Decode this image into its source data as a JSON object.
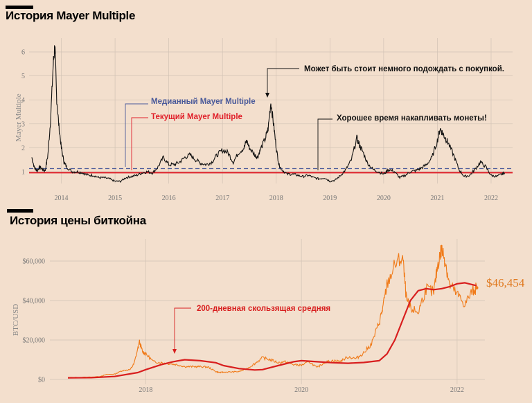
{
  "chart1": {
    "title": "История Mayer Multiple",
    "ylabel": "Mayer Multiple",
    "yticks": [
      "1",
      "2",
      "3",
      "4",
      "5",
      "6"
    ],
    "xticks": [
      "2014",
      "2015",
      "2016",
      "2017",
      "2018",
      "2019",
      "2020",
      "2021",
      "2022"
    ],
    "annotations": {
      "median": "Медианный Mayer Multiple",
      "current": "Текущий Mayer Multiple",
      "wait": "Может быть стоит немного подождать с покупкой.",
      "accumulate": "Хорошее время накапливать монеты!"
    },
    "colors": {
      "line": "#111111",
      "median": "#4a5a9a",
      "current": "#e0202a",
      "ann_median": "#4a5a9a",
      "ann_current": "#e0202a"
    }
  },
  "chart2": {
    "title": "История цены биткойна",
    "ylabel": "BTC/USD",
    "yticks": [
      "$0",
      "$20,000",
      "$40,000",
      "$60,000"
    ],
    "xticks": [
      "2018",
      "2020",
      "2022"
    ],
    "annotation": "200-дневная скользящая средняя",
    "current_price_label": "$46,454",
    "colors": {
      "price": "#f07a18",
      "ma": "#d81e1e",
      "label": "#e07a20"
    }
  },
  "chart_data": [
    {
      "type": "line",
      "title": "История Mayer Multiple",
      "ylabel": "Mayer Multiple",
      "ylim": [
        0.5,
        6.5
      ],
      "xlim": [
        2013.4,
        2022.4
      ],
      "grid": true,
      "reference_lines": [
        {
          "value": 1.13,
          "style": "dashed"
        },
        {
          "value": 0.96,
          "style": "solid"
        }
      ],
      "series": [
        {
          "x": [
            2013.45,
            2013.5,
            2013.55,
            2013.6,
            2013.65,
            2013.7,
            2013.75,
            2013.8,
            2013.85,
            2013.88,
            2013.91,
            2013.95,
            2014.0,
            2014.05,
            2014.1,
            2014.2,
            2014.3,
            2014.4,
            2014.5,
            2014.6,
            2014.7,
            2014.8,
            2014.9,
            2015.0,
            2015.1,
            2015.2,
            2015.3,
            2015.4,
            2015.5,
            2015.6,
            2015.7,
            2015.8,
            2015.9,
            2016.0,
            2016.1,
            2016.2,
            2016.3,
            2016.4,
            2016.5,
            2016.6,
            2016.7,
            2016.8,
            2016.9,
            2017.0,
            2017.1,
            2017.2,
            2017.3,
            2017.4,
            2017.45,
            2017.5,
            2017.6,
            2017.65,
            2017.7,
            2017.8,
            2017.85,
            2017.9,
            2017.95,
            2018.0,
            2018.05,
            2018.1,
            2018.2,
            2018.3,
            2018.4,
            2018.5,
            2018.6,
            2018.7,
            2018.8,
            2018.9,
            2019.0,
            2019.1,
            2019.2,
            2019.3,
            2019.4,
            2019.5,
            2019.55,
            2019.6,
            2019.7,
            2019.8,
            2019.9,
            2020.0,
            2020.1,
            2020.2,
            2020.3,
            2020.4,
            2020.5,
            2020.6,
            2020.7,
            2020.8,
            2020.9,
            2021.0,
            2021.05,
            2021.1,
            2021.15,
            2021.2,
            2021.3,
            2021.4,
            2021.5,
            2021.6,
            2021.7,
            2021.8,
            2021.9,
            2022.0,
            2022.1,
            2022.2,
            2022.25
          ],
          "y": [
            1.6,
            1.15,
            1.05,
            1.2,
            1.1,
            1.05,
            1.7,
            3.2,
            5.5,
            6.3,
            4.2,
            3.0,
            2.0,
            1.4,
            1.2,
            1.0,
            1.0,
            0.95,
            0.85,
            0.85,
            0.75,
            0.75,
            0.7,
            0.6,
            0.6,
            0.75,
            0.8,
            0.85,
            0.95,
            1.0,
            0.95,
            1.2,
            1.6,
            1.3,
            1.3,
            1.4,
            1.6,
            1.7,
            1.5,
            1.35,
            1.3,
            1.4,
            1.7,
            1.9,
            1.8,
            1.4,
            1.8,
            2.0,
            2.3,
            2.0,
            1.7,
            1.6,
            1.9,
            2.4,
            2.8,
            3.9,
            3.0,
            2.0,
            1.3,
            1.1,
            0.9,
            0.9,
            0.85,
            0.8,
            0.85,
            0.75,
            0.7,
            0.75,
            0.6,
            0.65,
            0.85,
            1.1,
            1.5,
            2.4,
            2.1,
            1.9,
            1.35,
            1.1,
            1.0,
            0.9,
            1.1,
            1.0,
            0.75,
            0.85,
            1.0,
            1.05,
            1.15,
            1.3,
            1.6,
            2.3,
            2.8,
            2.6,
            2.4,
            2.2,
            1.7,
            1.1,
            0.8,
            0.85,
            1.1,
            1.4,
            1.2,
            0.85,
            0.8,
            0.9,
            0.95
          ]
        }
      ]
    },
    {
      "type": "line",
      "title": "История цены биткойна",
      "ylabel": "BTC/USD",
      "ylim": [
        0,
        70000
      ],
      "xlim": [
        2017.0,
        2022.4
      ],
      "grid": true,
      "series": [
        {
          "x": [
            2017.0,
            2017.2,
            2017.4,
            2017.5,
            2017.6,
            2017.7,
            2017.8,
            2017.85,
            2017.92,
            2017.96,
            2018.0,
            2018.1,
            2018.2,
            2018.3,
            2018.4,
            2018.5,
            2018.6,
            2018.7,
            2018.8,
            2018.9,
            2018.95,
            2019.0,
            2019.1,
            2019.2,
            2019.3,
            2019.4,
            2019.5,
            2019.6,
            2019.7,
            2019.8,
            2019.9,
            2020.0,
            2020.1,
            2020.2,
            2020.3,
            2020.4,
            2020.5,
            2020.6,
            2020.7,
            2020.8,
            2020.9,
            2021.0,
            2021.05,
            2021.1,
            2021.2,
            2021.3,
            2021.35,
            2021.4,
            2021.5,
            2021.6,
            2021.7,
            2021.75,
            2021.8,
            2021.85,
            2021.9,
            2022.0,
            2022.1,
            2022.2,
            2022.25
          ],
          "y": [
            1000,
            1100,
            1400,
            2500,
            2700,
            4500,
            5000,
            8000,
            19000,
            14000,
            13000,
            9000,
            8500,
            8000,
            7500,
            6500,
            6500,
            6500,
            6300,
            4000,
            3500,
            3700,
            3800,
            4000,
            5500,
            8000,
            11000,
            10000,
            8500,
            9000,
            7500,
            7200,
            9000,
            6000,
            8700,
            9500,
            9200,
            11500,
            10500,
            13500,
            18000,
            29000,
            37000,
            48000,
            58000,
            62000,
            40000,
            36000,
            34000,
            46000,
            44000,
            58000,
            66000,
            60000,
            48000,
            43000,
            38000,
            45000,
            46454
          ]
        },
        {
          "x": [
            2017.0,
            2017.3,
            2017.6,
            2017.9,
            2018.0,
            2018.2,
            2018.35,
            2018.5,
            2018.7,
            2018.9,
            2019.0,
            2019.2,
            2019.4,
            2019.5,
            2019.7,
            2019.9,
            2020.0,
            2020.2,
            2020.4,
            2020.6,
            2020.8,
            2021.0,
            2021.1,
            2021.2,
            2021.3,
            2021.4,
            2021.5,
            2021.6,
            2021.7,
            2021.8,
            2021.9,
            2022.0,
            2022.1,
            2022.2,
            2022.25
          ],
          "y": [
            800,
            900,
            1500,
            3500,
            5000,
            7500,
            9000,
            10000,
            9500,
            8500,
            7000,
            5500,
            4800,
            5000,
            7000,
            9000,
            9500,
            9000,
            8500,
            8200,
            8600,
            9500,
            13000,
            20000,
            30000,
            40000,
            45000,
            46000,
            45500,
            46000,
            47000,
            48500,
            49000,
            48000,
            47500
          ]
        }
      ]
    }
  ]
}
